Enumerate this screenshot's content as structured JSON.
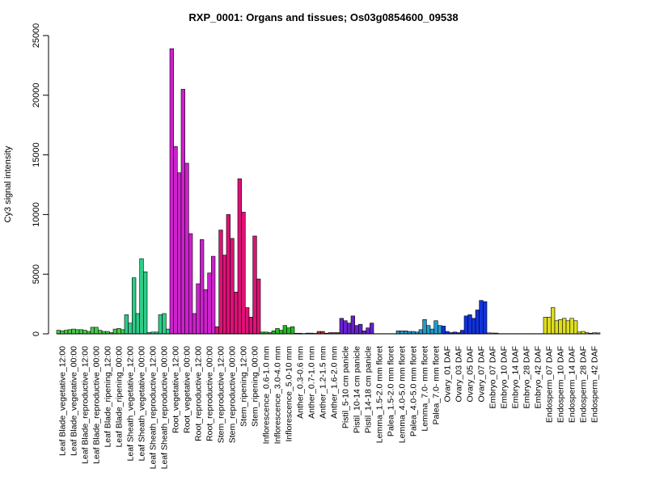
{
  "chart_data": {
    "type": "bar",
    "title": "RXP_0001: Organs and tissues; Os03g0854600_09538",
    "xlabel": "",
    "ylabel": "Cy3 signal intensity",
    "ylim": [
      0,
      25000
    ],
    "yticks": [
      0,
      5000,
      10000,
      15000,
      20000,
      25000
    ],
    "grid": false,
    "categories": [
      "Leaf Blade_vegetative_12:00",
      "Leaf Blade_vegetative_00:00",
      "Leaf Blade_reproductive_12:00",
      "Leaf Blade_reproductive_00:00",
      "Leaf Blade_ripening_12:00",
      "Leaf Blade_ripening_00:00",
      "Leaf Sheath_vegetative_12:00",
      "Leaf Sheath_vegetative_00:00",
      "Leaf Sheath_reproductive_12:00",
      "Leaf Sheath_reproductive_00:00",
      "Root_vegetative_12:00",
      "Root_vegetative_00:00",
      "Root_reproductive_12:00",
      "Root_reproductive_00:00",
      "Stem_reproductive_12:00",
      "Stem_reproductive_00:00",
      "Stem_ripening_12:00",
      "Stem_ripening_00:00",
      "Inflorescence_0.6-1.0 mm",
      "Inflorescence_3.0-4.0 mm",
      "Inflorescence_5.0-10 mm",
      "Anther_0.3-0.6 mm",
      "Anther_0.7-1.0 mm",
      "Anther_1.2-1.5 mm",
      "Anther_1.6-2.0 mm",
      "Pistil_5-10 cm panicle",
      "Pistil_10-14 cm panicle",
      "Pistil_14-18 cm panicle",
      "Lemma_1.5-2.0 mm floret",
      "Palea_1.5-2.0 mm floret",
      "Lemma_4.0-5.0 mm floret",
      "Palea_4.0-5.0 mm floret",
      "Lemma_7.0- mm floret",
      "Palea_7.0- mm floret",
      "Ovary_01 DAF",
      "Ovary_03 DAF",
      "Ovary_05 DAF",
      "Ovary_07 DAF",
      "Embryo_07 DAF",
      "Embryo_10 DAF",
      "Embryo_14 DAF",
      "Embryo_28 DAF",
      "Embryo_42 DAF",
      "Endosperm_07 DAF",
      "Endosperm_10 DAF",
      "Endosperm_14 DAF",
      "Endosperm_28 DAF",
      "Endosperm_42 DAF"
    ],
    "replicate_values": [
      [
        300,
        250,
        300
      ],
      [
        350,
        400,
        350
      ],
      [
        350,
        300,
        200
      ],
      [
        550,
        550,
        300
      ],
      [
        200,
        200,
        100
      ],
      [
        400,
        450,
        350
      ],
      [
        1600,
        900,
        4700
      ],
      [
        1700,
        6300,
        5200
      ],
      [
        100,
        150,
        150
      ],
      [
        1600,
        1700,
        400
      ],
      [
        23900,
        15700,
        13500
      ],
      [
        20500,
        14300,
        8400
      ],
      [
        1700,
        4200,
        7900
      ],
      [
        3700,
        5100,
        6500
      ],
      [
        600,
        8700,
        6600
      ],
      [
        10000,
        8000,
        3500
      ],
      [
        13000,
        10200,
        2200
      ],
      [
        1400,
        8200,
        4600
      ],
      [
        150,
        150,
        100
      ],
      [
        250,
        450,
        300
      ],
      [
        700,
        500,
        600
      ],
      [
        50,
        50,
        30
      ],
      [
        60,
        60,
        40
      ],
      [
        200,
        200,
        50
      ],
      [
        100,
        100,
        100
      ],
      [
        1300,
        1100,
        900
      ],
      [
        1500,
        700,
        800
      ],
      [
        250,
        500,
        900
      ],
      [
        20,
        20,
        20
      ],
      [
        20,
        20,
        20
      ],
      [
        250,
        250,
        250
      ],
      [
        200,
        200,
        150
      ],
      [
        350,
        1200,
        700
      ],
      [
        400,
        1100,
        700
      ],
      [
        650,
        200,
        100
      ],
      [
        150,
        100,
        300
      ],
      [
        1500,
        1600,
        1300
      ],
      [
        2000,
        2800,
        2700
      ],
      [
        80,
        70,
        60
      ],
      [
        20,
        20,
        20
      ],
      [
        20,
        20,
        20
      ],
      [
        20,
        20,
        20
      ],
      [
        20,
        20,
        20
      ],
      [
        1400,
        1400,
        2200
      ],
      [
        1100,
        1200,
        1300
      ],
      [
        1100,
        1300,
        1100
      ],
      [
        150,
        200,
        100
      ],
      [
        50,
        100,
        80
      ]
    ],
    "colors": [
      "#44cc44",
      "#44cc44",
      "#44cc44",
      "#44cc44",
      "#44cc44",
      "#44cc44",
      "#2ecc88",
      "#2ecc88",
      "#2ecc88",
      "#2ecc88",
      "#cc22cc",
      "#cc22cc",
      "#cc22cc",
      "#cc22cc",
      "#dd1177",
      "#dd1177",
      "#dd1177",
      "#dd1177",
      "#22bb22",
      "#22bb22",
      "#22bb22",
      "#cc2222",
      "#cc2222",
      "#cc2222",
      "#cc2222",
      "#6622cc",
      "#6622cc",
      "#6622cc",
      "#2299cc",
      "#2299cc",
      "#2299cc",
      "#2299cc",
      "#2299cc",
      "#2299cc",
      "#1133dd",
      "#1133dd",
      "#1133dd",
      "#1133dd",
      "#aacc22",
      "#aacc22",
      "#aacc22",
      "#aacc22",
      "#aacc22",
      "#dddd22",
      "#dddd22",
      "#dddd22",
      "#dddd22",
      "#dddd22"
    ]
  }
}
